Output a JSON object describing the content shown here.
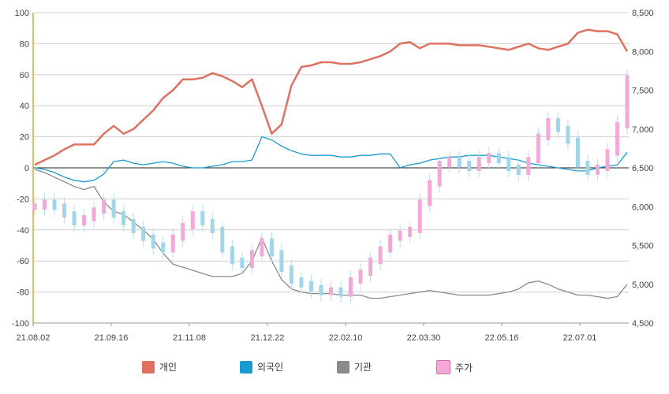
{
  "chart_data": {
    "type": "line",
    "title": "",
    "xlabel": "",
    "ylabel": "",
    "y_left": {
      "range": [
        -100,
        100
      ],
      "ticks": [
        "100",
        "80",
        "60",
        "40",
        "20",
        "0",
        "-20",
        "-40",
        "-60",
        "-80",
        "-100"
      ]
    },
    "y_right": {
      "range": [
        4500,
        8500
      ],
      "ticks": [
        "8,500",
        "8,000",
        "7,500",
        "7,000",
        "6,500",
        "6,000",
        "5,500",
        "5,000",
        "4,500"
      ]
    },
    "x_ticks": [
      "21.08.02",
      "21.09.16",
      "21.11.08",
      "21.12.22",
      "22.02.10",
      "22.03.30",
      "22.05.16",
      "22.07.01"
    ],
    "grid": true,
    "legend_position": "bottom",
    "series": [
      {
        "name": "개인",
        "color": "#e07060",
        "axis": "left",
        "values": [
          2,
          5,
          8,
          12,
          15,
          15,
          15,
          22,
          27,
          22,
          25,
          31,
          37,
          45,
          50,
          57,
          57,
          58,
          61,
          59,
          56,
          52,
          57,
          40,
          22,
          28,
          53,
          65,
          66,
          68,
          68,
          67,
          67,
          68,
          70,
          72,
          75,
          80,
          81,
          77,
          80,
          80,
          80,
          79,
          79,
          79,
          78,
          77,
          76,
          78,
          80,
          77,
          76,
          78,
          80,
          87,
          89,
          88,
          88,
          86,
          75
        ]
      },
      {
        "name": "외국인",
        "color": "#1a9bd0",
        "axis": "left",
        "values": [
          0,
          -1,
          -3,
          -6,
          -8,
          -9,
          -8,
          -4,
          4,
          5,
          3,
          2,
          3,
          4,
          3,
          1,
          0,
          0,
          1,
          2,
          4,
          4,
          5,
          20,
          18,
          14,
          11,
          9,
          8,
          8,
          8,
          7,
          7,
          8,
          8,
          9,
          9,
          0,
          2,
          3,
          5,
          6,
          7,
          7,
          8,
          8,
          8,
          7,
          6,
          5,
          3,
          2,
          1,
          0,
          -1,
          -2,
          -2,
          0,
          1,
          2,
          10
        ]
      },
      {
        "name": "기관",
        "color": "#8a8a8a",
        "axis": "left",
        "values": [
          -1,
          -3,
          -6,
          -9,
          -12,
          -14,
          -12,
          -22,
          -28,
          -30,
          -35,
          -40,
          -46,
          -55,
          -62,
          -64,
          -66,
          -68,
          -70,
          -70,
          -70,
          -68,
          -60,
          -45,
          -60,
          -72,
          -78,
          -80,
          -81,
          -81,
          -81,
          -82,
          -82,
          -82,
          -84,
          -84,
          -83,
          -82,
          -81,
          -80,
          -79,
          -80,
          -81,
          -82,
          -82,
          -82,
          -82,
          -81,
          -80,
          -78,
          -74,
          -73,
          -75,
          -78,
          -80,
          -82,
          -82,
          -83,
          -84,
          -83,
          -75
        ]
      },
      {
        "name": "주가",
        "color": "#f4a8d8",
        "axis": "right",
        "kind": "candles",
        "values": [
          6000,
          6050,
          6000,
          5900,
          5800,
          5850,
          5950,
          6050,
          5900,
          5800,
          5700,
          5600,
          5500,
          5450,
          5600,
          5750,
          5900,
          5800,
          5700,
          5450,
          5300,
          5250,
          5400,
          5550,
          5400,
          5200,
          5050,
          5000,
          4950,
          4900,
          4920,
          4880,
          5050,
          5150,
          5300,
          5450,
          5600,
          5650,
          5700,
          6050,
          6300,
          6550,
          6600,
          6550,
          6500,
          6600,
          6650,
          6600,
          6500,
          6450,
          6600,
          6900,
          7100,
          7000,
          6850,
          6550,
          6450,
          6500,
          6700,
          7050,
          7650
        ]
      }
    ]
  }
}
